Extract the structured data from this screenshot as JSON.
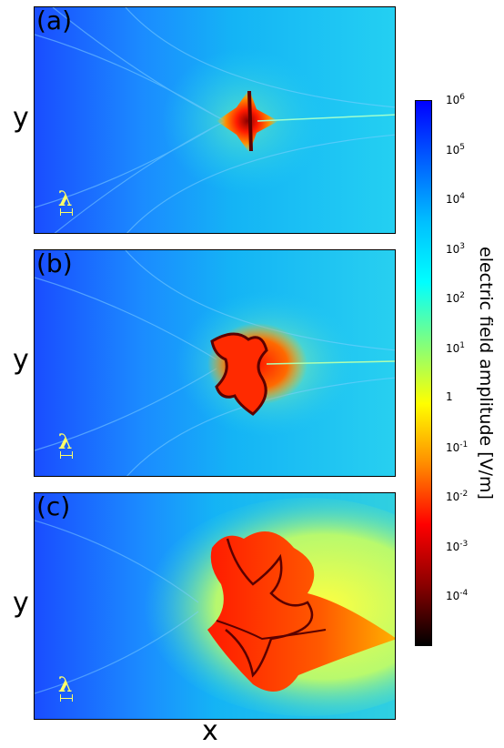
{
  "chart_data": [
    {
      "type": "heatmap",
      "panel_label": "(a)",
      "xlabel": "",
      "ylabel": "y",
      "scale_marker": "λ"
    },
    {
      "type": "heatmap",
      "panel_label": "(b)",
      "xlabel": "",
      "ylabel": "y",
      "scale_marker": "λ"
    },
    {
      "type": "heatmap",
      "panel_label": "(c)",
      "xlabel": "x",
      "ylabel": "y",
      "scale_marker": "λ"
    }
  ],
  "colorbar": {
    "title": "electric field amplitude [V/m]",
    "scale": "log",
    "range": [
      1e-05,
      1000000
    ],
    "ticks": [
      {
        "base": "10",
        "exp": "6"
      },
      {
        "base": "10",
        "exp": "5"
      },
      {
        "base": "10",
        "exp": "4"
      },
      {
        "base": "10",
        "exp": "3"
      },
      {
        "base": "10",
        "exp": "2"
      },
      {
        "base": "10",
        "exp": "1"
      },
      {
        "base": "1",
        "exp": ""
      },
      {
        "base": "10",
        "exp": "-1"
      },
      {
        "base": "10",
        "exp": "-2"
      },
      {
        "base": "10",
        "exp": "-3"
      },
      {
        "base": "10",
        "exp": "-4"
      }
    ],
    "colormap": [
      "#000000",
      "#8b0000",
      "#ff0000",
      "#ff8c00",
      "#ffff00",
      "#7fff7f",
      "#00ffff",
      "#00bfff",
      "#0060ff",
      "#0000ff"
    ]
  }
}
